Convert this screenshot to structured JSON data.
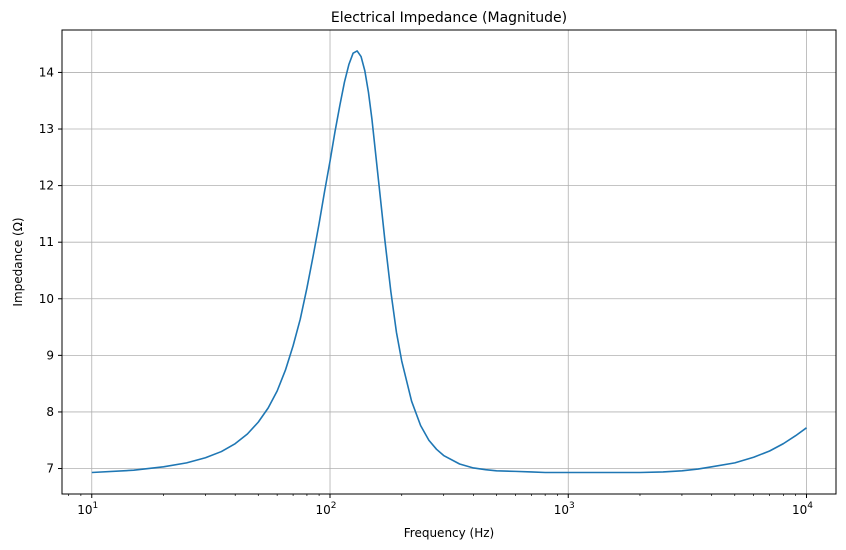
{
  "chart_data": {
    "type": "line",
    "title": "Electrical Impedance (Magnitude)",
    "xlabel": "Frequency (Hz)",
    "ylabel": "Impedance (Ω)",
    "xscale": "log",
    "xlim": [
      7.5,
      13300
    ],
    "ylim": [
      6.55,
      14.75
    ],
    "grid": true,
    "x_ticks": [
      {
        "value": 10,
        "base": "10",
        "exp": "1"
      },
      {
        "value": 100,
        "base": "10",
        "exp": "2"
      },
      {
        "value": 1000,
        "base": "10",
        "exp": "3"
      },
      {
        "value": 10000,
        "base": "10",
        "exp": "4"
      }
    ],
    "y_ticks": [
      7,
      8,
      9,
      10,
      11,
      12,
      13,
      14
    ],
    "series": [
      {
        "color": "#1f77b4",
        "x": [
          10,
          15,
          20,
          25,
          30,
          35,
          40,
          45,
          50,
          55,
          60,
          65,
          70,
          75,
          80,
          85,
          90,
          95,
          100,
          105,
          110,
          115,
          120,
          125,
          130,
          135,
          140,
          145,
          150,
          160,
          170,
          180,
          190,
          200,
          220,
          240,
          260,
          280,
          300,
          350,
          400,
          450,
          500,
          600,
          700,
          800,
          1000,
          1200,
          1500,
          1800,
          2000,
          2500,
          3000,
          3500,
          4000,
          5000,
          6000,
          7000,
          8000,
          9000,
          10000
        ],
        "y": [
          6.93,
          6.97,
          7.03,
          7.1,
          7.19,
          7.3,
          7.44,
          7.61,
          7.82,
          8.07,
          8.37,
          8.74,
          9.17,
          9.64,
          10.19,
          10.76,
          11.33,
          11.91,
          12.43,
          12.96,
          13.42,
          13.83,
          14.14,
          14.34,
          14.38,
          14.28,
          14.03,
          13.65,
          13.17,
          12.07,
          11.03,
          10.13,
          9.41,
          8.9,
          8.19,
          7.76,
          7.5,
          7.34,
          7.23,
          7.08,
          7.01,
          6.98,
          6.96,
          6.95,
          6.94,
          6.93,
          6.93,
          6.93,
          6.93,
          6.93,
          6.93,
          6.94,
          6.96,
          6.99,
          7.03,
          7.1,
          7.2,
          7.31,
          7.44,
          7.58,
          7.72
        ]
      }
    ]
  }
}
